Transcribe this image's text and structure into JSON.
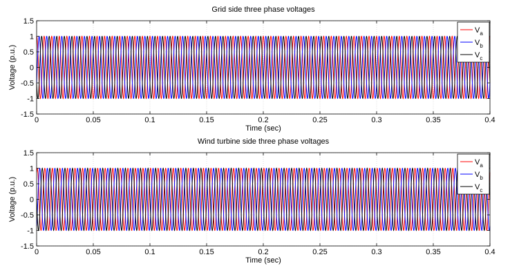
{
  "chart_data": [
    {
      "type": "line",
      "title": "Grid side three phase voltages",
      "xlabel": "Time (sec)",
      "ylabel": "Voltage (p.u.)",
      "xlim": [
        0,
        0.4
      ],
      "ylim": [
        -1.5,
        1.5
      ],
      "xticks": [
        "0",
        "0.05",
        "0.1",
        "0.15",
        "0.2",
        "0.25",
        "0.3",
        "0.35",
        "0.4"
      ],
      "yticks": [
        "-1.5",
        "-1",
        "-0.5",
        "0",
        "0.5",
        "1",
        "1.5"
      ],
      "grid": true,
      "legend": "top-right",
      "frequency_hz": 150,
      "amplitude_pu": 1,
      "phase_shift_deg": 120,
      "series": [
        {
          "name": "V",
          "subscript": "a",
          "color": "#ff0000",
          "phase_deg": 90
        },
        {
          "name": "V",
          "subscript": "b",
          "color": "#0000ff",
          "phase_deg": -30
        },
        {
          "name": "V",
          "subscript": "c",
          "color": "#000000",
          "phase_deg": 210
        }
      ]
    },
    {
      "type": "line",
      "title": "Wind turbine side three phase voltages",
      "xlabel": "Time (sec)",
      "ylabel": "Voltage (p.u.)",
      "xlim": [
        0,
        0.4
      ],
      "ylim": [
        -1.5,
        1.5
      ],
      "xticks": [
        "0",
        "0.05",
        "0.1",
        "0.15",
        "0.2",
        "0.25",
        "0.3",
        "0.35",
        "0.4"
      ],
      "yticks": [
        "-1.5",
        "-1",
        "-0.5",
        "0",
        "0.5",
        "1",
        "1.5"
      ],
      "grid": true,
      "legend": "top-right",
      "frequency_hz": 150,
      "amplitude_pu": 1,
      "phase_shift_deg": 120,
      "series": [
        {
          "name": "V",
          "subscript": "a",
          "color": "#ff0000",
          "phase_deg": 60
        },
        {
          "name": "V",
          "subscript": "b",
          "color": "#0000ff",
          "phase_deg": -60
        },
        {
          "name": "V",
          "subscript": "c",
          "color": "#000000",
          "phase_deg": 180
        }
      ]
    }
  ]
}
